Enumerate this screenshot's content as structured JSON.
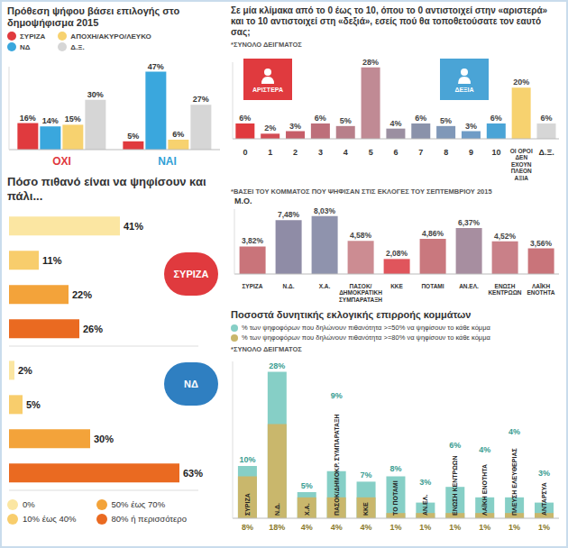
{
  "chart_data": [
    {
      "type": "bar",
      "title": "Πρόθεση ψήφου βάσει επιλογής στο δημοψήφισμα 2015",
      "categories": [
        "ΟΧΙ",
        "ΝΑΙ"
      ],
      "series": [
        {
          "name": "ΣΥΡΙΖΑ",
          "color": "#e03a3e",
          "values": [
            16,
            5
          ],
          "value_labels": [
            "16%",
            "5%"
          ]
        },
        {
          "name": "ΝΔ",
          "color": "#3aa7dd",
          "values": [
            14,
            47
          ],
          "value_labels": [
            "14%",
            "47%"
          ]
        },
        {
          "name": "ΑΠΟΧΗ/ΑΚΥΡΟ/ΛΕΥΚΟ",
          "color": "#f7d26f",
          "values": [
            15,
            6
          ],
          "value_labels": [
            "15%",
            "6%"
          ]
        },
        {
          "name": "Δ.Ξ.",
          "color": "#d6d6d6",
          "values": [
            30,
            27
          ],
          "value_labels": [
            "30%",
            "27%"
          ]
        }
      ],
      "ylim": [
        0,
        50
      ],
      "tick_labels": "x",
      "data_labels": true,
      "legend": "top"
    },
    {
      "type": "bar",
      "orientation": "horizontal",
      "title": "Πόσο πιθανό είναι να ψηφίσουν και πάλι...",
      "categories": [
        "0%",
        "10% έως 40%",
        "50% έως 70%",
        "80% ή περισσότερο"
      ],
      "colors": [
        "#fbe6a2",
        "#f8cd6c",
        "#f3a33a",
        "#ea6a21"
      ],
      "series": [
        {
          "name": "ΣΥΡΙΖΑ",
          "color": "#e03a3e",
          "values": [
            41,
            11,
            22,
            26
          ],
          "value_labels": [
            "41%",
            "11%",
            "22%",
            "26%"
          ]
        },
        {
          "name": "ΝΔ",
          "color": "#2f7fc1",
          "values": [
            2,
            5,
            30,
            63
          ],
          "value_labels": [
            "2%",
            "5%",
            "30%",
            "63%"
          ]
        }
      ],
      "xlim": [
        0,
        70
      ],
      "tick_labels": false,
      "data_labels": true,
      "legend": "bottom"
    },
    {
      "type": "bar",
      "title": "Σε μία κλίμακα από το 0 έως το 10, όπου το 0 αντιστοιχεί στην «αριστερά» και το 10 αντιστοιχεί στη «δεξιά», εσείς πού θα τοποθετούσατε τον εαυτό σας;",
      "subtitle": "*ΣΥΝΟΛΟ ΔΕΙΓΜΑΤΟΣ",
      "categories": [
        "0",
        "1",
        "2",
        "3",
        "4",
        "5",
        "6",
        "7",
        "8",
        "9",
        "10",
        "ΟΙ ΟΡΟΙ ΔΕΝ ΕΧΟΥΝ ΠΛΕΟΝ ΑΞΙΑ",
        "Δ.Ξ."
      ],
      "values": [
        6,
        2,
        3,
        6,
        5,
        28,
        4,
        6,
        5,
        3,
        6,
        20,
        6
      ],
      "value_labels": [
        "6%",
        "2%",
        "3%",
        "6%",
        "5%",
        "28%",
        "4%",
        "6%",
        "5%",
        "3%",
        "6%",
        "20%",
        "6%"
      ],
      "colors": [
        "#e03a3e",
        "#d34c55",
        "#c65e69",
        "#bd6f7a",
        "#b87f8a",
        "#c08a94",
        "#9b8fa1",
        "#8a92aa",
        "#8098b8",
        "#6f9cc6",
        "#4aa4d6",
        "#f7d26f",
        "#d6d6d6"
      ],
      "annotations": [
        {
          "text": "ΑΡΙΣΤΕΡΑ",
          "color": "#e03a3e"
        },
        {
          "text": "ΔΕΞΙΑ",
          "color": "#4aa4d6"
        }
      ],
      "ylim": [
        0,
        30
      ],
      "tick_labels": "x",
      "data_labels": true
    },
    {
      "type": "bar",
      "subtitle": "*ΒΑΣΕΙ ΤΟΥ ΚΟΜΜΑΤΟΣ ΠΟΥ ΨΗΦΙΣΑΝ ΣΤΙΣ ΕΚΛΟΓΕΣ ΤΟΥ ΣΕΠΤΕΜΒΡΙΟΥ 2015",
      "ylabel": "Μ.Ο.",
      "categories": [
        "ΣΥΡΙΖΑ",
        "Ν.Δ.",
        "Χ.Α.",
        "ΠΑΣΟΚ/ΔΗΜΟΚΡΑΤΙΚΗ ΣΥΜΠΑΡΑΤΑΞΗ",
        "ΚΚΕ",
        "ΠΟΤΑΜΙ",
        "ΑΝ.ΕΛ.",
        "ΕΝΩΣΗ ΚΕΝΤΡΩΩΝ",
        "ΛΑΪΚΗ ΕΝΟΤΗΤΑ"
      ],
      "values": [
        3.82,
        7.48,
        8.03,
        4.58,
        2.08,
        4.86,
        6.37,
        4.52,
        3.56
      ],
      "value_labels": [
        "3,82%",
        "7,48%",
        "8,03%",
        "4,58%",
        "2,08%",
        "4,86%",
        "6,37%",
        "4,52%",
        "3,56%"
      ],
      "colors": [
        "#c9747a",
        "#8f8ca6",
        "#8f93ad",
        "#cc8c92",
        "#e0555c",
        "#c9787e",
        "#a78ea0",
        "#c98088",
        "#c9747a"
      ],
      "ylim": [
        0,
        9
      ],
      "tick_labels": "x",
      "data_labels": true
    },
    {
      "type": "bar",
      "title": "Ποσοστά δυνητικής εκλογικής επιρροής κομμάτων",
      "subtitle": "*ΣΥΝΟΛΟ ΔΕΙΓΜΑΤΟΣ",
      "categories": [
        "ΣΥΡΙΖΑ",
        "Ν.Δ.",
        "Χ.Α.",
        "ΠΑΣΟΚ/ΔΗΜΟΚΡ. ΣΥΜΠΑΡΑΤΑΞΗ",
        "ΚΚΕ",
        "ΤΟ ΠΟΤΑΜΙ",
        "ΑΝ.ΕΛ.",
        "ΕΝΩΣΗ ΚΕΝΤΡΩΩΝ",
        "ΛΑΪΚΗ ΕΝΟΤΗΤΑ",
        "ΠΛΕΥΣΗ ΕΛΕΥΘΕΡΙΑΣ",
        "ΑΝΤΑΡΣΥΑ"
      ],
      "series": [
        {
          "name": "% των ψηφοφόρων που δηλώνουν πιθανότητα >=50% να ψηφίσουν το κάθε κόμμα",
          "color": "#86cfc6",
          "values": [
            10,
            28,
            5,
            9,
            7,
            8,
            3,
            6,
            4,
            4,
            3
          ],
          "value_labels": [
            "10%",
            "28%",
            "5%",
            "9%",
            "7%",
            "8%",
            "3%",
            "6%",
            "4%",
            "4%",
            "3%"
          ]
        },
        {
          "name": "% των ψηφοφόρων που δηλώνουν πιθανότητα >=80% να ψηφίσουν το κάθε κόμμα",
          "color": "#c9b76c",
          "values": [
            8,
            18,
            4,
            4,
            4,
            1,
            1,
            1,
            1,
            1,
            1
          ],
          "value_labels": [
            "8%",
            "18%",
            "4%",
            "4%",
            "4%",
            "1%",
            "1%",
            "1%",
            "1%",
            "1%",
            "1%"
          ]
        }
      ],
      "ylim": [
        0,
        30
      ],
      "tick_labels": false,
      "data_labels": true,
      "legend": "top"
    }
  ]
}
